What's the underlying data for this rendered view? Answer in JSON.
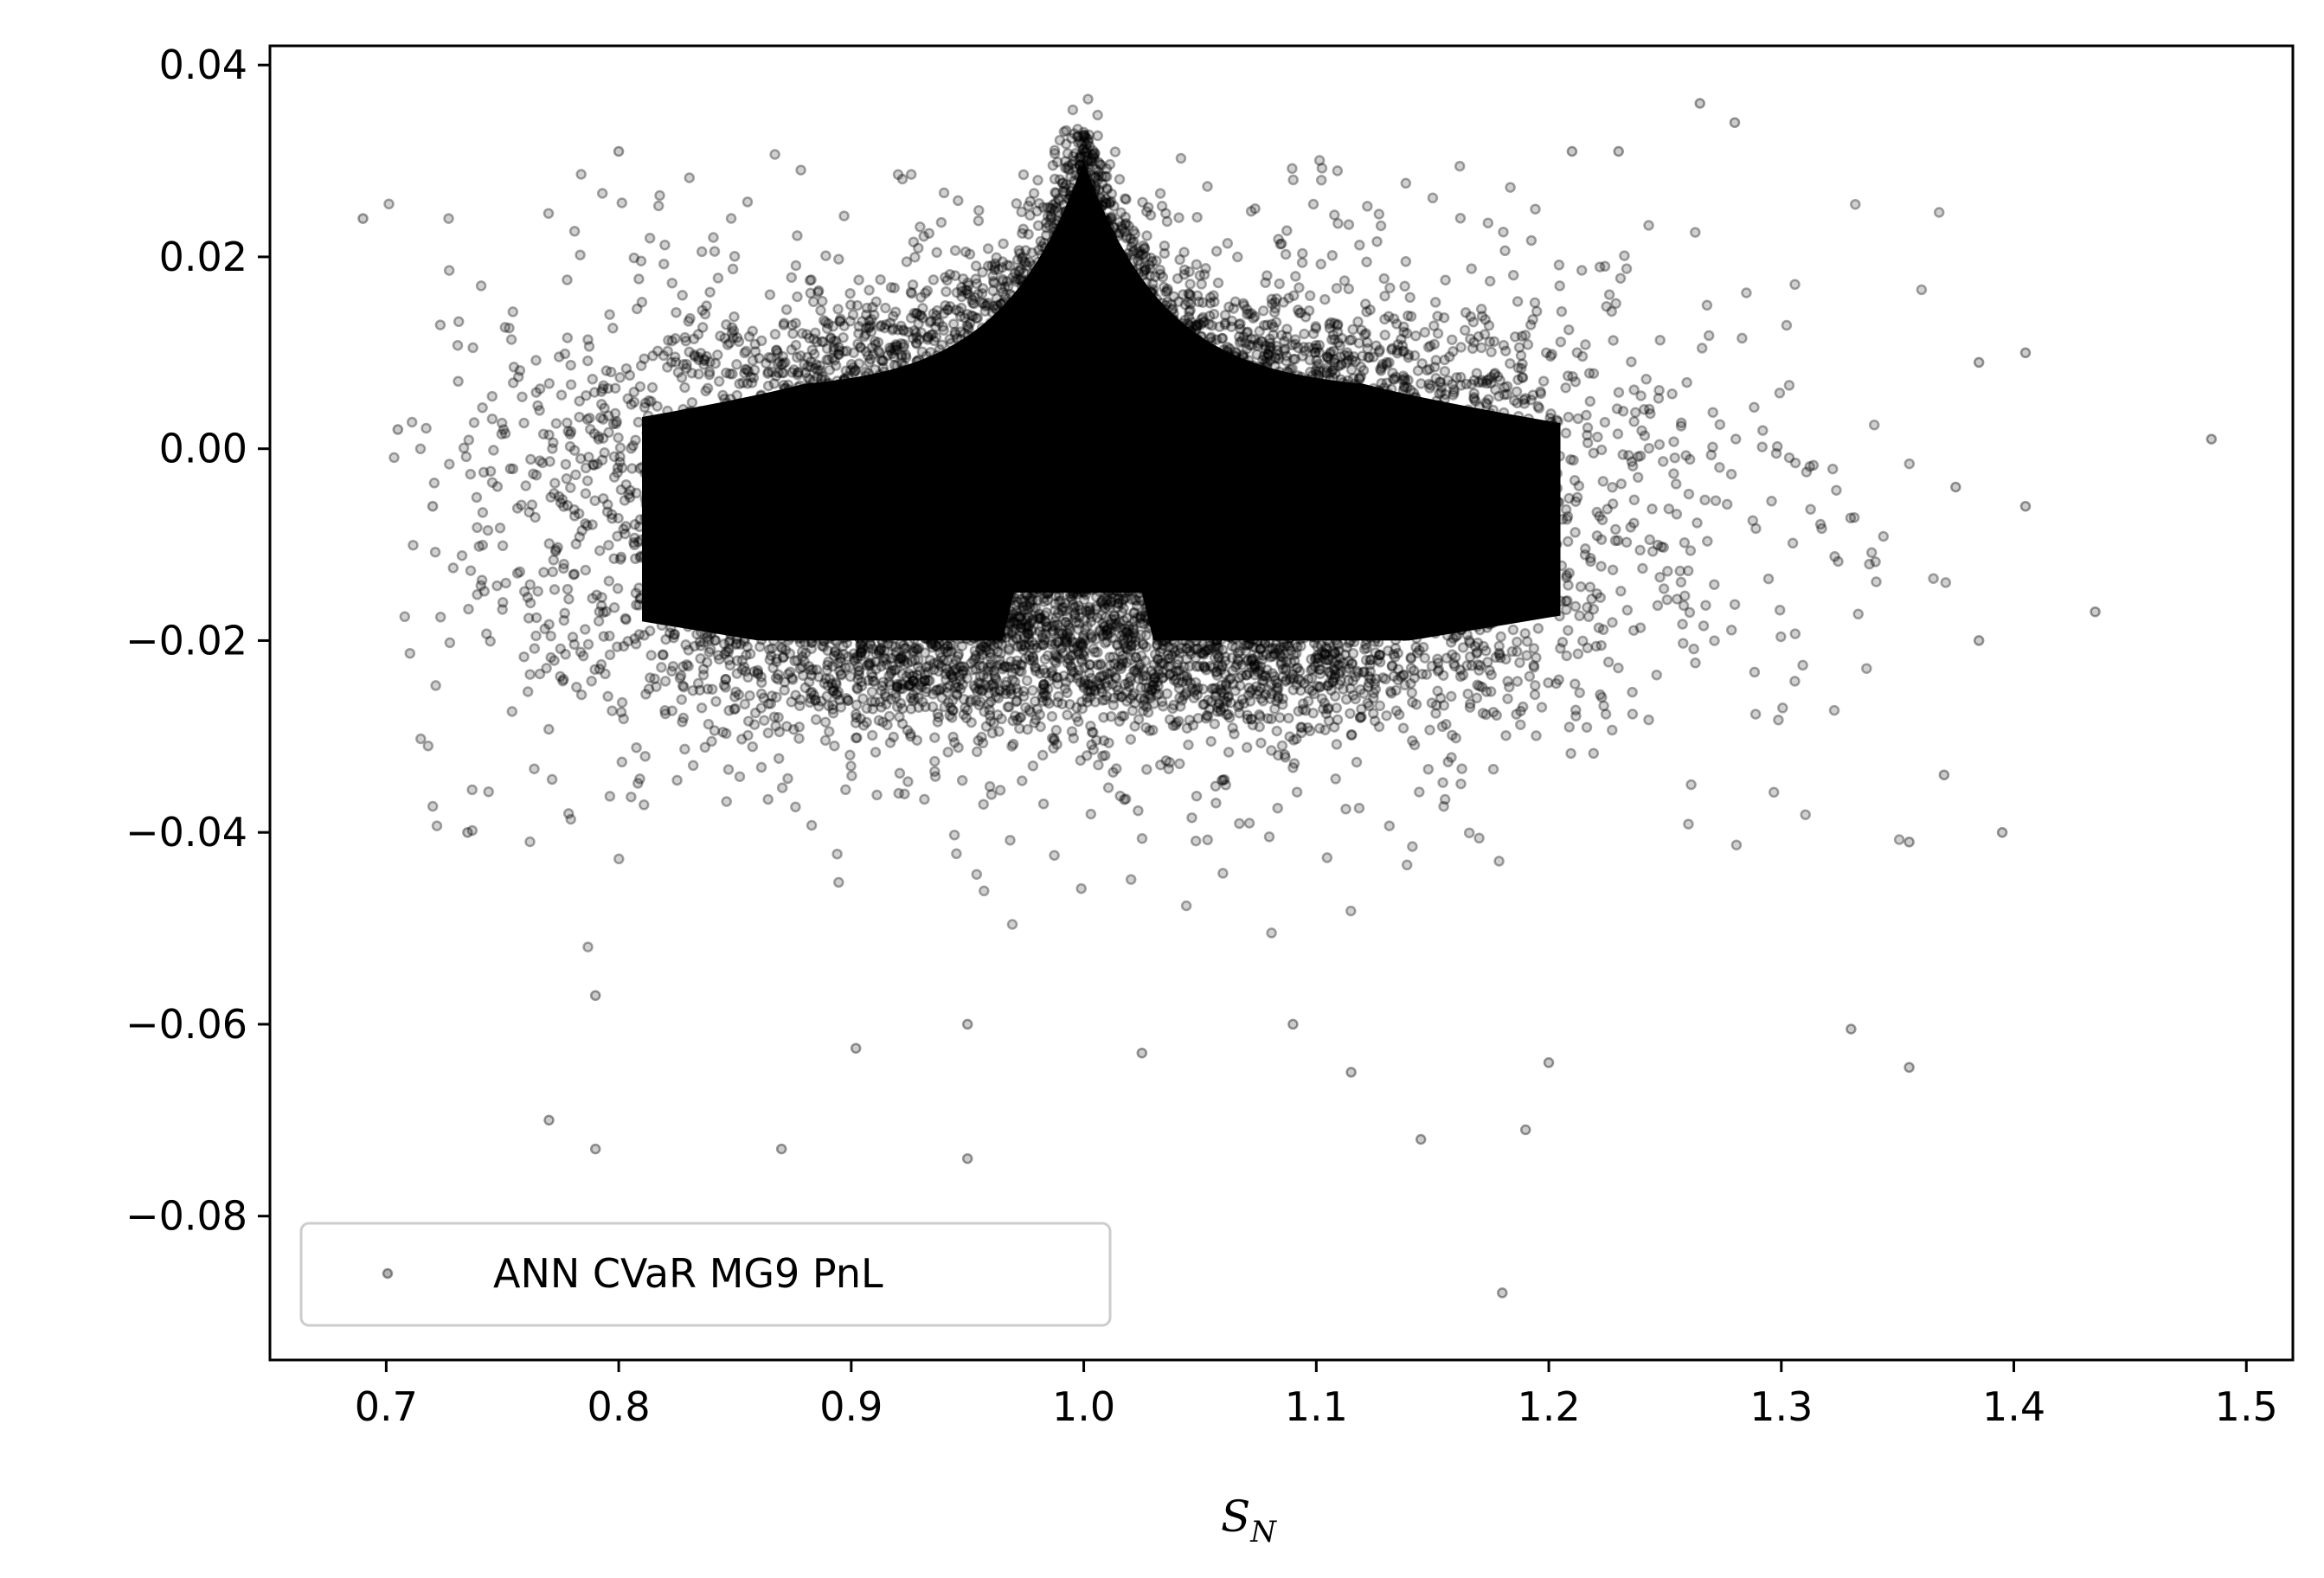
{
  "chart_data": {
    "type": "scatter",
    "xlabel_main": "S",
    "xlabel_sub": "N",
    "xlim": [
      0.65,
      1.52
    ],
    "ylim": [
      -0.095,
      0.042
    ],
    "xticks": [
      0.7,
      0.8,
      0.9,
      1.0,
      1.1,
      1.2,
      1.3,
      1.4,
      1.5
    ],
    "xtick_labels": [
      "0.7",
      "0.8",
      "0.9",
      "1.0",
      "1.1",
      "1.2",
      "1.3",
      "1.4",
      "1.5"
    ],
    "yticks": [
      0.04,
      0.02,
      0.0,
      -0.02,
      -0.04,
      -0.06,
      -0.08
    ],
    "ytick_labels": [
      "0.04",
      "0.02",
      "0.00",
      "−0.02",
      "−0.04",
      "−0.06",
      "−0.08"
    ],
    "grid": false,
    "legend_position": "lower-left",
    "series": [
      {
        "name": "ANN CVaR MG9 PnL",
        "color": "#000000",
        "marker": "hollow-circle",
        "opacity": 0.3,
        "core_density": "dense cloud centered near x=1.0, y≈-0.005, spanning x 0.76–1.28 and y -0.035–0.03 with a peak at (1.0, 0.033)",
        "outliers": [
          [
            0.69,
            0.024
          ],
          [
            0.705,
            0.002
          ],
          [
            0.72,
            -0.006
          ],
          [
            0.735,
            -0.04
          ],
          [
            0.77,
            -0.07
          ],
          [
            0.79,
            -0.057
          ],
          [
            0.79,
            -0.073
          ],
          [
            0.8,
            0.031
          ],
          [
            0.87,
            -0.073
          ],
          [
            0.95,
            -0.074
          ],
          [
            0.902,
            -0.0625
          ],
          [
            1.18,
            -0.088
          ],
          [
            1.145,
            -0.072
          ],
          [
            1.19,
            -0.071
          ],
          [
            1.265,
            0.036
          ],
          [
            1.28,
            0.034
          ],
          [
            1.485,
            0.001
          ],
          [
            1.405,
            0.01
          ],
          [
            1.435,
            -0.017
          ],
          [
            1.395,
            -0.04
          ],
          [
            1.355,
            -0.0645
          ],
          [
            1.33,
            -0.0605
          ],
          [
            1.405,
            -0.006
          ],
          [
            1.385,
            -0.02
          ],
          [
            1.37,
            -0.034
          ],
          [
            1.355,
            -0.041
          ],
          [
            1.025,
            -0.063
          ],
          [
            1.115,
            -0.065
          ],
          [
            0.95,
            -0.06
          ],
          [
            1.09,
            -0.06
          ],
          [
            1.2,
            -0.064
          ],
          [
            1.21,
            0.031
          ],
          [
            1.23,
            0.031
          ],
          [
            1.385,
            0.009
          ],
          [
            1.375,
            -0.004
          ]
        ]
      }
    ]
  }
}
